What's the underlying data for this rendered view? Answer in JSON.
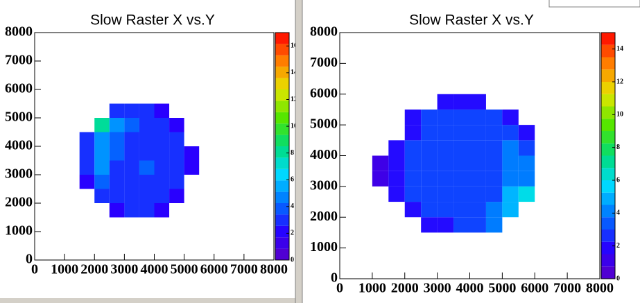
{
  "chart_data": [
    {
      "type": "heatmap",
      "title": "Slow Raster X vs.Y",
      "xbins": [
        0,
        500,
        1000,
        1500,
        2000,
        2500,
        3000,
        3500,
        4000,
        4500,
        5000,
        5500,
        6000,
        6500,
        7000,
        7500,
        8000
      ],
      "ybins": [
        0,
        500,
        1000,
        1500,
        2000,
        2500,
        3000,
        3500,
        4000,
        4500,
        5000,
        5500,
        6000,
        6500,
        7000,
        7500,
        8000
      ],
      "z": [
        [
          0,
          0,
          0,
          0,
          0,
          0,
          0,
          0,
          0,
          0,
          0,
          0,
          0,
          0,
          0,
          0
        ],
        [
          0,
          0,
          0,
          0,
          0,
          0,
          0,
          0,
          0,
          0,
          0,
          0,
          0,
          0,
          0,
          0
        ],
        [
          0,
          0,
          0,
          0,
          0,
          0,
          0,
          0,
          0,
          0,
          0,
          0,
          0,
          0,
          0,
          0
        ],
        [
          0,
          0,
          0,
          0,
          0,
          2,
          3,
          3,
          2,
          0,
          0,
          0,
          0,
          0,
          0,
          0
        ],
        [
          0,
          0,
          0,
          0,
          3,
          3,
          3,
          3,
          3,
          2,
          0,
          0,
          0,
          0,
          0,
          0
        ],
        [
          0,
          0,
          0,
          2,
          4,
          3,
          3,
          3,
          3,
          3,
          0,
          0,
          0,
          0,
          0,
          0
        ],
        [
          0,
          0,
          0,
          3,
          5,
          3,
          3,
          4,
          3,
          3,
          2,
          0,
          0,
          0,
          0,
          0
        ],
        [
          0,
          0,
          0,
          3,
          5,
          4,
          3,
          3,
          3,
          3,
          2,
          0,
          0,
          0,
          0,
          0
        ],
        [
          0,
          0,
          0,
          3,
          5,
          4,
          3,
          3,
          3,
          3,
          0,
          0,
          0,
          0,
          0,
          0
        ],
        [
          0,
          0,
          0,
          0,
          8,
          5,
          4,
          3,
          3,
          2,
          0,
          0,
          0,
          0,
          0,
          0
        ],
        [
          0,
          0,
          0,
          0,
          0,
          3,
          3,
          3,
          2,
          0,
          0,
          0,
          0,
          0,
          0,
          0
        ],
        [
          0,
          0,
          0,
          0,
          0,
          0,
          0,
          0,
          0,
          0,
          0,
          0,
          0,
          0,
          0,
          0
        ],
        [
          0,
          0,
          0,
          0,
          0,
          0,
          0,
          0,
          0,
          0,
          0,
          0,
          0,
          0,
          0,
          0
        ],
        [
          0,
          0,
          0,
          0,
          0,
          0,
          0,
          0,
          0,
          0,
          0,
          0,
          0,
          0,
          0,
          0
        ],
        [
          0,
          0,
          0,
          0,
          0,
          0,
          0,
          0,
          0,
          0,
          0,
          0,
          0,
          0,
          0,
          0
        ],
        [
          0,
          0,
          0,
          0,
          0,
          0,
          0,
          0,
          0,
          0,
          0,
          0,
          0,
          0,
          0,
          0
        ]
      ],
      "xlim": [
        0,
        8000
      ],
      "ylim": [
        0,
        8000
      ],
      "zlim": [
        0,
        17
      ],
      "xticks": [
        0,
        1000,
        2000,
        3000,
        4000,
        5000,
        6000,
        7000,
        8000
      ],
      "yticks": [
        0,
        1000,
        2000,
        3000,
        4000,
        5000,
        6000,
        7000,
        8000
      ],
      "zticks": [
        0,
        2,
        4,
        6,
        8,
        10,
        12,
        14,
        16
      ]
    },
    {
      "type": "heatmap",
      "title": "Slow Raster X vs.Y",
      "xbins": [
        0,
        500,
        1000,
        1500,
        2000,
        2500,
        3000,
        3500,
        4000,
        4500,
        5000,
        5500,
        6000,
        6500,
        7000,
        7500,
        8000
      ],
      "ybins": [
        0,
        500,
        1000,
        1500,
        2000,
        2500,
        3000,
        3500,
        4000,
        4500,
        5000,
        5500,
        6000,
        6500,
        7000,
        7500,
        8000
      ],
      "z": [
        [
          0,
          0,
          0,
          0,
          0,
          0,
          0,
          0,
          0,
          0,
          0,
          0,
          0,
          0,
          0,
          0
        ],
        [
          0,
          0,
          0,
          0,
          0,
          0,
          0,
          0,
          0,
          0,
          0,
          0,
          0,
          0,
          0,
          0
        ],
        [
          0,
          0,
          0,
          0,
          0,
          0,
          0,
          0,
          0,
          0,
          0,
          0,
          0,
          0,
          0,
          0
        ],
        [
          0,
          0,
          0,
          0,
          0,
          2,
          2,
          3,
          3,
          4,
          0,
          0,
          0,
          0,
          0,
          0
        ],
        [
          0,
          0,
          0,
          0,
          2,
          3,
          3,
          3,
          3,
          4,
          5,
          0,
          0,
          0,
          0,
          0
        ],
        [
          0,
          0,
          0,
          2,
          3,
          3,
          3,
          3,
          3,
          3,
          5,
          6,
          0,
          0,
          0,
          0
        ],
        [
          0,
          0,
          1,
          2,
          3,
          3,
          3,
          3,
          3,
          3,
          4,
          4,
          0,
          0,
          0,
          0
        ],
        [
          0,
          0,
          1,
          2,
          3,
          3,
          3,
          3,
          3,
          3,
          4,
          4,
          0,
          0,
          0,
          0
        ],
        [
          0,
          0,
          0,
          2,
          3,
          3,
          3,
          3,
          3,
          3,
          4,
          3,
          0,
          0,
          0,
          0
        ],
        [
          0,
          0,
          0,
          0,
          2,
          3,
          3,
          3,
          3,
          3,
          3,
          2,
          0,
          0,
          0,
          0
        ],
        [
          0,
          0,
          0,
          0,
          2,
          3,
          3,
          3,
          3,
          3,
          2,
          0,
          0,
          0,
          0,
          0
        ],
        [
          0,
          0,
          0,
          0,
          0,
          0,
          2,
          2,
          2,
          0,
          0,
          0,
          0,
          0,
          0,
          0
        ],
        [
          0,
          0,
          0,
          0,
          0,
          0,
          0,
          0,
          0,
          0,
          0,
          0,
          0,
          0,
          0,
          0
        ],
        [
          0,
          0,
          0,
          0,
          0,
          0,
          0,
          0,
          0,
          0,
          0,
          0,
          0,
          0,
          0,
          0
        ],
        [
          0,
          0,
          0,
          0,
          0,
          0,
          0,
          0,
          0,
          0,
          0,
          0,
          0,
          0,
          0,
          0
        ],
        [
          0,
          0,
          0,
          0,
          0,
          0,
          0,
          0,
          0,
          0,
          0,
          0,
          0,
          0,
          0,
          0
        ]
      ],
      "xlim": [
        0,
        8000
      ],
      "ylim": [
        0,
        8000
      ],
      "zlim": [
        0,
        15
      ],
      "xticks": [
        0,
        1000,
        2000,
        3000,
        4000,
        5000,
        6000,
        7000,
        8000
      ],
      "yticks": [
        0,
        1000,
        2000,
        3000,
        4000,
        5000,
        6000,
        7000,
        8000
      ],
      "zticks": [
        0,
        2,
        4,
        6,
        8,
        10,
        12,
        14
      ]
    }
  ]
}
